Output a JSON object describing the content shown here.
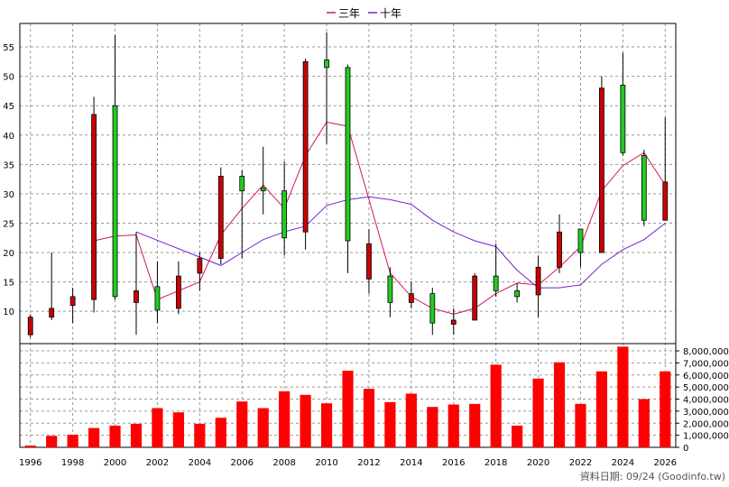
{
  "chart_data": {
    "type": "candlestick+bar",
    "legend": [
      {
        "label": "三年",
        "color": "#d4145a"
      },
      {
        "label": "十年",
        "color": "#7a1fd6"
      }
    ],
    "price_axis": {
      "ticks": [
        10,
        15,
        20,
        25,
        30,
        35,
        40,
        45,
        50,
        55
      ],
      "ylim": [
        4.5,
        59
      ]
    },
    "volume_axis": {
      "ticks": [
        0,
        1000000,
        2000000,
        3000000,
        4000000,
        5000000,
        6000000,
        7000000,
        8000000
      ],
      "tick_labels": [
        "0",
        "1,000,000",
        "2,000,000",
        "3,000,000",
        "4,000,000",
        "5,000,000",
        "6,000,000",
        "7,000,000",
        "8,000,000"
      ],
      "ylim": [
        0,
        8600000
      ]
    },
    "x_axis": {
      "tick_labels": [
        "1996",
        "1998",
        "2000",
        "2002",
        "2004",
        "2006",
        "2008",
        "2010",
        "2012",
        "2014",
        "2016",
        "2018",
        "2020",
        "2022",
        "2024",
        "2026"
      ],
      "xlim": [
        1995.5,
        2026.5
      ]
    },
    "candles": [
      {
        "year": 1996,
        "open": 9,
        "high": 9.5,
        "low": 5.5,
        "close": 6
      },
      {
        "year": 1997,
        "open": 10.5,
        "high": 20,
        "low": 8.5,
        "close": 9
      },
      {
        "year": 1998,
        "open": 12.5,
        "high": 14,
        "low": 8,
        "close": 11
      },
      {
        "year": 1999,
        "open": 43.5,
        "high": 46.5,
        "low": 9.8,
        "close": 12
      },
      {
        "year": 2000,
        "open": 12.5,
        "high": 57,
        "low": 12,
        "close": 45
      },
      {
        "year": 2001,
        "open": 13.5,
        "high": 23.5,
        "low": 6,
        "close": 11.5
      },
      {
        "year": 2002,
        "open": 10.2,
        "high": 18.5,
        "low": 8,
        "close": 14.2
      },
      {
        "year": 2003,
        "open": 16,
        "high": 18.5,
        "low": 9.5,
        "close": 10.5
      },
      {
        "year": 2004,
        "open": 19,
        "high": 20,
        "low": 13.5,
        "close": 16.5
      },
      {
        "year": 2005,
        "open": 33,
        "high": 34.5,
        "low": 18,
        "close": 19
      },
      {
        "year": 2006,
        "open": 30.5,
        "high": 34,
        "low": 19,
        "close": 33
      },
      {
        "year": 2007,
        "open": 30.5,
        "high": 38,
        "low": 26.5,
        "close": 31
      },
      {
        "year": 2008,
        "open": 22.5,
        "high": 35.5,
        "low": 19.5,
        "close": 30.5
      },
      {
        "year": 2009,
        "open": 52.5,
        "high": 53,
        "low": 20.5,
        "close": 23.5
      },
      {
        "year": 2010,
        "open": 51.5,
        "high": 57.5,
        "low": 38.5,
        "close": 52.8
      },
      {
        "year": 2011,
        "open": 22,
        "high": 52,
        "low": 16.5,
        "close": 51.5
      },
      {
        "year": 2012,
        "open": 21.5,
        "high": 24,
        "low": 13,
        "close": 15.5
      },
      {
        "year": 2013,
        "open": 11.5,
        "high": 17.5,
        "low": 9,
        "close": 16
      },
      {
        "year": 2014,
        "open": 13,
        "high": 15,
        "low": 10.5,
        "close": 11.5
      },
      {
        "year": 2015,
        "open": 8,
        "high": 14,
        "low": 6,
        "close": 13
      },
      {
        "year": 2016,
        "open": 8.5,
        "high": 10.5,
        "low": 6,
        "close": 7.8
      },
      {
        "year": 2017,
        "open": 16,
        "high": 16.5,
        "low": 8.5,
        "close": 8.5
      },
      {
        "year": 2018,
        "open": 13.5,
        "high": 21.5,
        "low": 12.5,
        "close": 16
      },
      {
        "year": 2019,
        "open": 12.5,
        "high": 14.8,
        "low": 11.5,
        "close": 13.5
      },
      {
        "year": 2020,
        "open": 17.5,
        "high": 19.5,
        "low": 9,
        "close": 12.8
      },
      {
        "year": 2021,
        "open": 23.5,
        "high": 26.5,
        "low": 16.5,
        "close": 17.5
      },
      {
        "year": 2022,
        "open": 20,
        "high": 24,
        "low": 17.5,
        "close": 24
      },
      {
        "year": 2023,
        "open": 48,
        "high": 50,
        "low": 20,
        "close": 20
      },
      {
        "year": 2024,
        "open": 37,
        "high": 54,
        "low": 36.5,
        "close": 48.5
      },
      {
        "year": 2025,
        "open": 25.5,
        "high": 37.5,
        "low": 24.5,
        "close": 36.5
      },
      {
        "year": 2026,
        "open": 32,
        "high": 43,
        "low": 25.5,
        "close": 25.5
      }
    ],
    "series": [
      {
        "name": "三年",
        "color": "#d4145a",
        "x": [
          1999,
          2000,
          2001,
          2002,
          2003,
          2004,
          2005,
          2006,
          2007,
          2008,
          2009,
          2010,
          2011,
          2012,
          2013,
          2014,
          2015,
          2016,
          2017,
          2018,
          2019,
          2020,
          2021,
          2022,
          2023,
          2024,
          2025,
          2026
        ],
        "values": [
          22,
          22.8,
          23,
          12,
          13.5,
          15,
          23,
          27.5,
          31.5,
          27.5,
          36.5,
          42.2,
          41.5,
          29,
          16.5,
          12.5,
          10.5,
          9.5,
          10.5,
          13,
          14.8,
          14.5,
          17.5,
          21,
          30.5,
          34.8,
          37,
          31.5
        ]
      },
      {
        "name": "十年",
        "color": "#7a1fd6",
        "x": [
          2001,
          2005,
          2006,
          2007,
          2008,
          2009,
          2010,
          2011,
          2012,
          2013,
          2014,
          2015,
          2016,
          2017,
          2018,
          2019,
          2020,
          2021,
          2022,
          2023,
          2024,
          2025,
          2026
        ],
        "values": [
          23.5,
          17.8,
          20,
          22.2,
          23.5,
          24.5,
          28,
          29,
          29.5,
          29,
          28.2,
          25.5,
          23.5,
          22,
          21,
          17,
          14,
          14,
          14.5,
          18,
          20.5,
          22.2,
          25
        ]
      }
    ],
    "volume": {
      "years": [
        1996,
        1997,
        1998,
        1999,
        2000,
        2001,
        2002,
        2003,
        2004,
        2005,
        2006,
        2007,
        2008,
        2009,
        2010,
        2011,
        2012,
        2013,
        2014,
        2015,
        2016,
        2017,
        2018,
        2019,
        2020,
        2021,
        2022,
        2023,
        2024,
        2025,
        2026
      ],
      "values": [
        150000,
        950000,
        1050000,
        1600000,
        1800000,
        1950000,
        3250000,
        2900000,
        1950000,
        2450000,
        3800000,
        3250000,
        4650000,
        4350000,
        3650000,
        6350000,
        4850000,
        3750000,
        4450000,
        3350000,
        3550000,
        3600000,
        6850000,
        1800000,
        5700000,
        7050000,
        3600000,
        6300000,
        8350000,
        4000000,
        6300000
      ],
      "color": "#ff0000"
    },
    "up_color": "#22cc22",
    "down_color": "#cc0000",
    "grid": true
  },
  "footer": {
    "source": "資料日期: 09/24  (Goodinfo.tw)"
  }
}
